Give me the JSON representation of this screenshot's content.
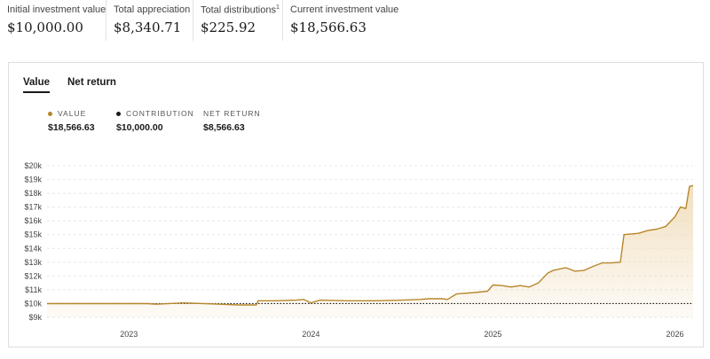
{
  "summary": [
    {
      "label": "Initial investment value",
      "value": "$10,000.00",
      "sup": ""
    },
    {
      "label": "Total appreciation",
      "value": "$8,340.71",
      "sup": ""
    },
    {
      "label": "Total distributions",
      "value": "$225.92",
      "sup": "1"
    },
    {
      "label": "Current investment value",
      "value": "$18,566.63",
      "sup": ""
    }
  ],
  "tabs": [
    {
      "label": "Value",
      "active": true
    },
    {
      "label": "Net return",
      "active": false
    }
  ],
  "legend": [
    {
      "label": "VALUE",
      "value": "$18,566.63",
      "color": "#b8862b"
    },
    {
      "label": "CONTRIBUTION",
      "value": "$10,000.00",
      "color": "#1a1a1a"
    },
    {
      "label": "NET RETURN",
      "value": "$8,566.63",
      "color": ""
    }
  ],
  "colors": {
    "value_line": "#b8862b",
    "contribution_line": "#1a1a1a",
    "area_top": "#f0dcb8",
    "grid": "#e8e8e8"
  },
  "chart_data": {
    "type": "area",
    "ylim": [
      9000,
      20000
    ],
    "yticks": [
      9000,
      10000,
      11000,
      12000,
      13000,
      14000,
      15000,
      16000,
      17000,
      18000,
      19000,
      20000
    ],
    "ytick_labels": [
      "$9k",
      "$10k",
      "$11k",
      "$12k",
      "$13k",
      "$14k",
      "$15k",
      "$16k",
      "$17k",
      "$18k",
      "$19k",
      "$20k"
    ],
    "xlim": [
      2022.55,
      2026.1
    ],
    "xticks": [
      2023,
      2024,
      2025,
      2026
    ],
    "xtick_labels": [
      "2023",
      "2024",
      "2025",
      "2026"
    ],
    "contribution": 10000,
    "series": [
      {
        "name": "Value",
        "x": [
          2022.55,
          2022.7,
          2022.9,
          2023.1,
          2023.15,
          2023.3,
          2023.5,
          2023.6,
          2023.7,
          2023.71,
          2023.8,
          2023.92,
          2023.96,
          2024.0,
          2024.05,
          2024.2,
          2024.35,
          2024.5,
          2024.6,
          2024.65,
          2024.72,
          2024.75,
          2024.8,
          2024.9,
          2024.97,
          2025.0,
          2025.05,
          2025.1,
          2025.15,
          2025.2,
          2025.25,
          2025.3,
          2025.33,
          2025.4,
          2025.45,
          2025.5,
          2025.55,
          2025.6,
          2025.65,
          2025.7,
          2025.72,
          2025.8,
          2025.85,
          2025.9,
          2025.95,
          2026.0,
          2026.03,
          2026.06,
          2026.08,
          2026.1
        ],
        "values": [
          10000,
          10000,
          10000,
          10000,
          9950,
          10050,
          9950,
          9900,
          9900,
          10200,
          10200,
          10250,
          10300,
          10050,
          10250,
          10200,
          10200,
          10250,
          10300,
          10350,
          10350,
          10300,
          10700,
          10800,
          10900,
          11350,
          11300,
          11200,
          11300,
          11200,
          11500,
          12200,
          12400,
          12600,
          12350,
          12400,
          12700,
          12950,
          12950,
          13000,
          15000,
          15100,
          15300,
          15400,
          15600,
          16300,
          17000,
          16900,
          18500,
          18566.63
        ]
      }
    ]
  }
}
